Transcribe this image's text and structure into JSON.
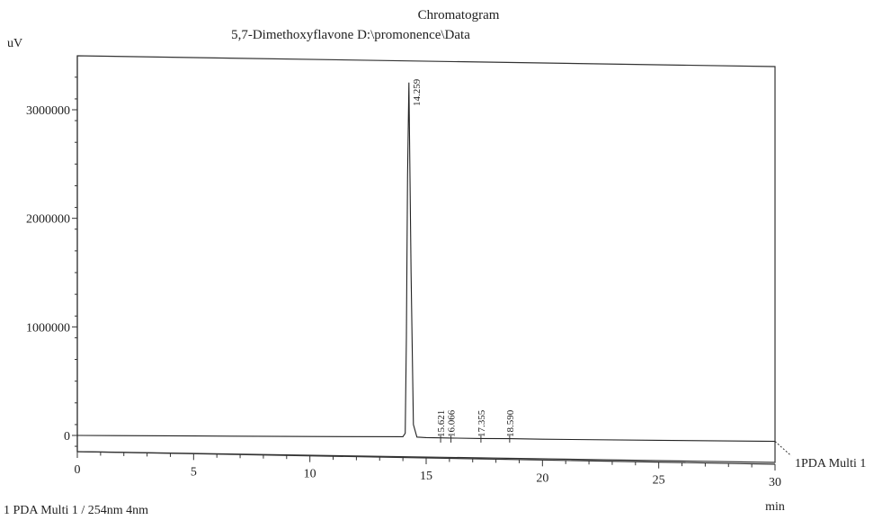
{
  "chart_data": {
    "type": "line",
    "title": "Chromatogram",
    "subtitle": "5,7-Dimethoxyflavone D:\\promonence\\Data",
    "ylabel": "uV",
    "xlabel": "min",
    "xlim": [
      0,
      30
    ],
    "ylim": [
      -100000,
      3400000
    ],
    "x_ticks": [
      0,
      5,
      10,
      15,
      20,
      25,
      30
    ],
    "x_tick_labels": [
      "0",
      "5",
      "10",
      "15",
      "20",
      "25",
      "30"
    ],
    "y_ticks": [
      0,
      1000000,
      2000000,
      3000000
    ],
    "y_tick_labels": [
      "0",
      "1000000",
      "2000000",
      "3000000"
    ],
    "series": [
      {
        "name": "1PDA Multi 1",
        "x": [
          0,
          5,
          10,
          14.0,
          14.1,
          14.15,
          14.2,
          14.259,
          14.35,
          14.45,
          14.6,
          15.0,
          15.621,
          16.066,
          17.355,
          18.59,
          20,
          25,
          30
        ],
        "y": [
          0,
          -5000,
          -10000,
          -12000,
          20000,
          900000,
          2400000,
          3250000,
          1500000,
          100000,
          -15000,
          -20000,
          -22000,
          -24000,
          -28000,
          -30000,
          -35000,
          -45000,
          -55000
        ]
      }
    ],
    "peaks": [
      {
        "rt": 14.259,
        "label": "14.259"
      },
      {
        "rt": 15.621,
        "label": "15.621"
      },
      {
        "rt": 16.066,
        "label": "16.066"
      },
      {
        "rt": 17.355,
        "label": "17.355"
      },
      {
        "rt": 18.59,
        "label": "18.590"
      }
    ],
    "trace_label": "1PDA Multi 1",
    "footer": "1 PDA Multi 1 / 254nm 4nm",
    "grid": false
  }
}
